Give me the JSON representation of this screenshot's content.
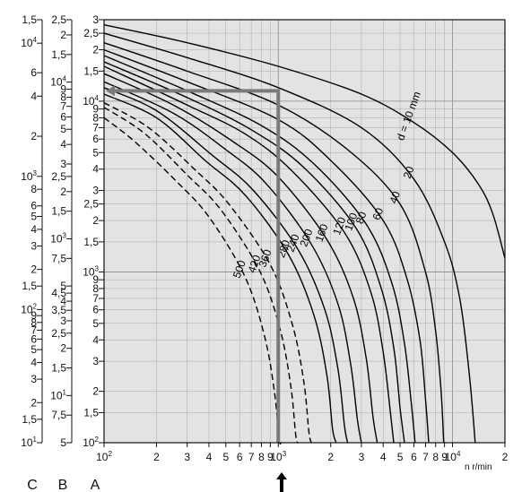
{
  "chart_data": {
    "type": "line",
    "title": "",
    "x_axis": {
      "scale": "log",
      "range": [
        100,
        20000
      ],
      "unit_label": "n r/min",
      "ticks": [
        {
          "value": 100,
          "label": "10",
          "sup": "2"
        },
        {
          "value": 200,
          "label": "2"
        },
        {
          "value": 300,
          "label": "3"
        },
        {
          "value": 400,
          "label": "4"
        },
        {
          "value": 500,
          "label": "5"
        },
        {
          "value": 600,
          "label": "6"
        },
        {
          "value": 700,
          "label": "7"
        },
        {
          "value": 800,
          "label": "8"
        },
        {
          "value": 900,
          "label": "9"
        },
        {
          "value": 1000,
          "label": "10",
          "sup": "3"
        },
        {
          "value": 2000,
          "label": "2"
        },
        {
          "value": 3000,
          "label": "3"
        },
        {
          "value": 4000,
          "label": "4"
        },
        {
          "value": 5000,
          "label": "5"
        },
        {
          "value": 6000,
          "label": "6"
        },
        {
          "value": 7000,
          "label": "7"
        },
        {
          "value": 8000,
          "label": "8"
        },
        {
          "value": 9000,
          "label": "9"
        },
        {
          "value": 10000,
          "label": "10",
          "sup": "4"
        },
        {
          "value": 20000,
          "label": "2"
        }
      ]
    },
    "y_axis": {
      "scale": "log",
      "range": [
        100,
        30000
      ],
      "axes": [
        {
          "name": "A",
          "ticks": [
            {
              "value": 100,
              "label": "10",
              "sup": "2"
            },
            {
              "value": 150,
              "label": "1,5"
            },
            {
              "value": 200,
              "label": "2"
            },
            {
              "value": 300,
              "label": "3"
            },
            {
              "value": 400,
              "label": "4"
            },
            {
              "value": 500,
              "label": "5"
            },
            {
              "value": 600,
              "label": "6"
            },
            {
              "value": 700,
              "label": "7"
            },
            {
              "value": 800,
              "label": "8"
            },
            {
              "value": 900,
              "label": "9"
            },
            {
              "value": 1000,
              "label": "10",
              "sup": "3"
            },
            {
              "value": 1500,
              "label": "1,5"
            },
            {
              "value": 2000,
              "label": "2"
            },
            {
              "value": 2500,
              "label": "2,5"
            },
            {
              "value": 3000,
              "label": "3"
            },
            {
              "value": 4000,
              "label": "4"
            },
            {
              "value": 5000,
              "label": "5"
            },
            {
              "value": 6000,
              "label": "6"
            },
            {
              "value": 7000,
              "label": "7"
            },
            {
              "value": 8000,
              "label": "8"
            },
            {
              "value": 9000,
              "label": "9"
            },
            {
              "value": 10000,
              "label": "10",
              "sup": "4"
            },
            {
              "value": 15000,
              "label": "1,5"
            },
            {
              "value": 20000,
              "label": "2"
            },
            {
              "value": 25000,
              "label": "2,5"
            },
            {
              "value": 30000,
              "label": "3"
            }
          ]
        },
        {
          "name": "B",
          "ticks": [
            {
              "value": 100,
              "label": "5"
            },
            {
              "value": 150,
              "label": "7,5"
            },
            {
              "value": 200,
              "label": "10",
              "sup": "1"
            },
            {
              "value": 300,
              "label": "1,5"
            },
            {
              "value": 400,
              "label": "2"
            },
            {
              "value": 500,
              "label": "2,5"
            },
            {
              "value": 600,
              "label": "3"
            },
            {
              "value": 700,
              "label": "3,5"
            },
            {
              "value": 800,
              "label": "4"
            },
            {
              "value": 900,
              "label": "4,5"
            },
            {
              "value": 1000,
              "label": "5"
            },
            {
              "value": 1500,
              "label": "7,5"
            },
            {
              "value": 2000,
              "label": "10",
              "sup": "3"
            },
            {
              "value": 3000,
              "label": "1,5"
            },
            {
              "value": 4000,
              "label": "2"
            },
            {
              "value": 5000,
              "label": "2,5"
            },
            {
              "value": 6000,
              "label": "3"
            },
            {
              "value": 8000,
              "label": "4"
            },
            {
              "value": 10000,
              "label": "5"
            },
            {
              "value": 12000,
              "label": "6"
            },
            {
              "value": 14000,
              "label": "7"
            },
            {
              "value": 16000,
              "label": "8"
            },
            {
              "value": 18000,
              "label": "9"
            },
            {
              "value": 20000,
              "label": "10",
              "sup": "4"
            },
            {
              "value": 30000,
              "label": "1,5"
            },
            {
              "value": 40000,
              "label": "2"
            },
            {
              "value": 50000,
              "label": "2,5"
            }
          ]
        },
        {
          "name": "C",
          "ticks": [
            {
              "value": 100,
              "label": "10",
              "sup": "1"
            },
            {
              "value": 150,
              "label": "1,5"
            },
            {
              "value": 200,
              "label": "2"
            },
            {
              "value": 300,
              "label": "3"
            },
            {
              "value": 400,
              "label": "4"
            },
            {
              "value": 500,
              "label": "5"
            },
            {
              "value": 600,
              "label": "6"
            },
            {
              "value": 700,
              "label": "7"
            },
            {
              "value": 800,
              "label": "8"
            },
            {
              "value": 900,
              "label": "9"
            },
            {
              "value": 1000,
              "label": "10",
              "sup": "2"
            },
            {
              "value": 1500,
              "label": "1,5"
            },
            {
              "value": 2000,
              "label": "2"
            },
            {
              "value": 3000,
              "label": "3"
            },
            {
              "value": 4000,
              "label": "4"
            },
            {
              "value": 5000,
              "label": "5"
            },
            {
              "value": 6000,
              "label": "6"
            },
            {
              "value": 8000,
              "label": "8"
            },
            {
              "value": 10000,
              "label": "10",
              "sup": "3"
            },
            {
              "value": 20000,
              "label": "2"
            },
            {
              "value": 40000,
              "label": "4"
            },
            {
              "value": 60000,
              "label": "6"
            },
            {
              "value": 100000,
              "label": "10",
              "sup": "4"
            },
            {
              "value": 150000,
              "label": "1,5"
            }
          ]
        }
      ]
    },
    "grid": true,
    "legend": "none",
    "series": [
      {
        "name": "d = 10 mm",
        "dashed": false,
        "x": [
          100,
          300,
          1000,
          3000,
          6000,
          10000,
          14000,
          17000,
          20000
        ],
        "y": [
          28000,
          22000,
          16000,
          11000,
          7500,
          5000,
          3300,
          2200,
          1200
        ]
      },
      {
        "name": "20",
        "dashed": false,
        "x": [
          100,
          300,
          1000,
          3000,
          6000,
          9000,
          11000,
          12500,
          13500
        ],
        "y": [
          25000,
          18000,
          12000,
          7000,
          3500,
          1500,
          700,
          250,
          100
        ]
      },
      {
        "name": "40",
        "dashed": false,
        "x": [
          100,
          300,
          1000,
          2500,
          5000,
          7000,
          8000,
          8600,
          8900
        ],
        "y": [
          22000,
          15000,
          9500,
          5200,
          2500,
          1000,
          450,
          200,
          100
        ]
      },
      {
        "name": "60",
        "dashed": false,
        "x": [
          100,
          300,
          1000,
          2000,
          4000,
          5500,
          6500,
          7000,
          7300
        ],
        "y": [
          20000,
          13000,
          7800,
          4500,
          2000,
          900,
          400,
          180,
          100
        ]
      },
      {
        "name": "80",
        "dashed": false,
        "x": [
          100,
          300,
          800,
          1600,
          3200,
          4500,
          5300,
          5800,
          6100
        ],
        "y": [
          18500,
          11500,
          7200,
          4300,
          1900,
          850,
          380,
          170,
          100
        ]
      },
      {
        "name": "100",
        "dashed": false,
        "x": [
          100,
          300,
          700,
          1400,
          2800,
          3900,
          4600,
          5000,
          5300
        ],
        "y": [
          17000,
          10500,
          6800,
          4100,
          1800,
          800,
          360,
          160,
          100
        ]
      },
      {
        "name": "120",
        "dashed": false,
        "x": [
          100,
          300,
          650,
          1200,
          2400,
          3400,
          4000,
          4400,
          4600
        ],
        "y": [
          16000,
          9500,
          6400,
          3900,
          1700,
          760,
          340,
          150,
          100
        ]
      },
      {
        "name": "160",
        "dashed": false,
        "x": [
          100,
          250,
          550,
          1000,
          1900,
          2700,
          3200,
          3500,
          3700
        ],
        "y": [
          14500,
          9500,
          5800,
          3600,
          1550,
          700,
          310,
          140,
          100
        ]
      },
      {
        "name": "200",
        "dashed": false,
        "x": [
          100,
          250,
          500,
          850,
          1550,
          2200,
          2600,
          2850,
          3000
        ],
        "y": [
          13000,
          8500,
          5200,
          3300,
          1450,
          650,
          290,
          135,
          100
        ]
      },
      {
        "name": "240",
        "dashed": false,
        "x": [
          100,
          200,
          420,
          720,
          1300,
          1850,
          2200,
          2400,
          2500
        ],
        "y": [
          12000,
          8800,
          4800,
          3000,
          1350,
          600,
          270,
          125,
          100
        ]
      },
      {
        "name": "280",
        "dashed": false,
        "x": [
          100,
          200,
          380,
          650,
          1150,
          1600,
          1900,
          2050,
          2150
        ],
        "y": [
          11000,
          8000,
          4500,
          2800,
          1250,
          560,
          250,
          120,
          100
        ]
      },
      {
        "name": "360",
        "dashed": true,
        "x": [
          100,
          180,
          330,
          520,
          900,
          1200,
          1400,
          1500,
          1550
        ],
        "y": [
          9800,
          7000,
          4000,
          2500,
          1100,
          500,
          230,
          115,
          100
        ]
      },
      {
        "name": "420",
        "dashed": true,
        "x": [
          100,
          170,
          300,
          470,
          780,
          1020,
          1180,
          1260,
          1300
        ],
        "y": [
          9200,
          6500,
          3700,
          2300,
          1020,
          470,
          215,
          110,
          100
        ]
      },
      {
        "name": "500",
        "dashed": true,
        "x": [
          100,
          150,
          260,
          400,
          640,
          830,
          950,
          1010,
          1040
        ],
        "y": [
          8000,
          5800,
          3400,
          2100,
          950,
          430,
          200,
          105,
          100
        ]
      }
    ],
    "example_reading": {
      "x": 1000,
      "y": 11500
    }
  }
}
